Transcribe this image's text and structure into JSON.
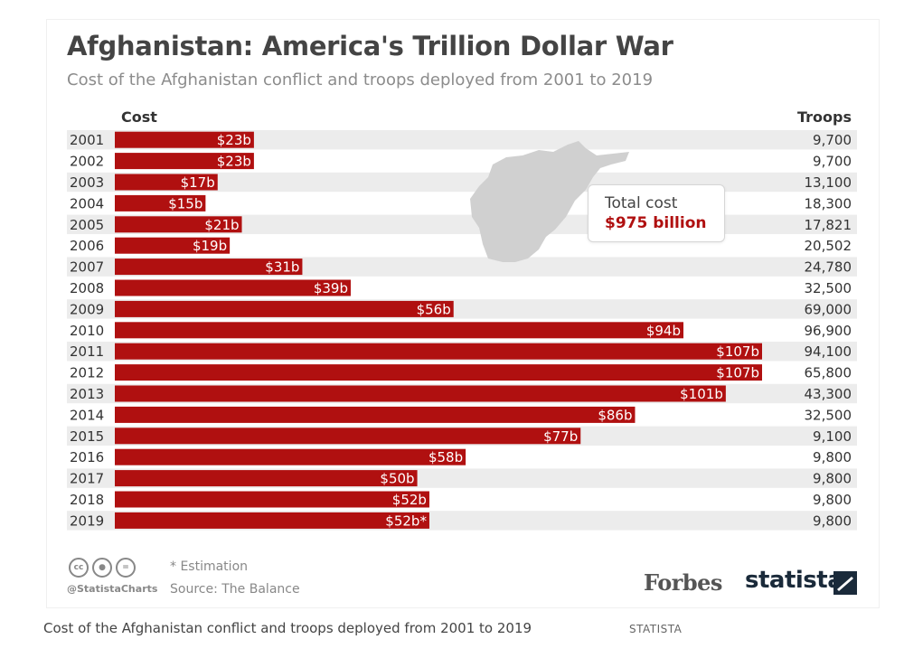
{
  "caption": {
    "text": "Cost of the Afghanistan conflict and troops deployed from 2001 to 2019",
    "source": "STATISTA"
  },
  "colors": {
    "bar": "#b01010",
    "row_band": "#ececec",
    "map": "#d0d0d0"
  },
  "chart_data": {
    "type": "bar",
    "orientation": "horizontal",
    "title": "Afghanistan: America's Trillion Dollar War",
    "subtitle": "Cost of the Afghanistan conflict and troops deployed from 2001 to 2019",
    "cost_header": "Cost",
    "troops_header": "Troops",
    "categories": [
      "2001",
      "2002",
      "2003",
      "2004",
      "2005",
      "2006",
      "2007",
      "2008",
      "2009",
      "2010",
      "2011",
      "2012",
      "2013",
      "2014",
      "2015",
      "2016",
      "2017",
      "2018",
      "2019"
    ],
    "values": [
      23,
      23,
      17,
      15,
      21,
      19,
      31,
      39,
      56,
      94,
      107,
      107,
      101,
      86,
      77,
      58,
      50,
      52,
      52
    ],
    "value_labels": [
      "$23b",
      "$23b",
      "$17b",
      "$15b",
      "$21b",
      "$19b",
      "$31b",
      "$39b",
      "$56b",
      "$94b",
      "$107b",
      "$107b",
      "$101b",
      "$86b",
      "$77b",
      "$58b",
      "$50b",
      "$52b",
      "$52b*"
    ],
    "troops": [
      "9,700",
      "9,700",
      "13,100",
      "18,300",
      "17,821",
      "20,502",
      "24,780",
      "32,500",
      "69,000",
      "96,900",
      "94,100",
      "65,800",
      "43,300",
      "32,500",
      "9,100",
      "9,800",
      "9,800",
      "9,800",
      "9,800"
    ],
    "annotation": {
      "label": "Total cost",
      "value": "$975 billion"
    },
    "xlim": [
      0,
      110
    ],
    "footnote": "* Estimation",
    "source": "Source: The Balance"
  },
  "footer": {
    "handle": "@StatistaCharts",
    "cc_icons": [
      "cc-icon",
      "by-icon",
      "nd-icon"
    ],
    "forbes": "Forbes",
    "statista": "statista"
  }
}
